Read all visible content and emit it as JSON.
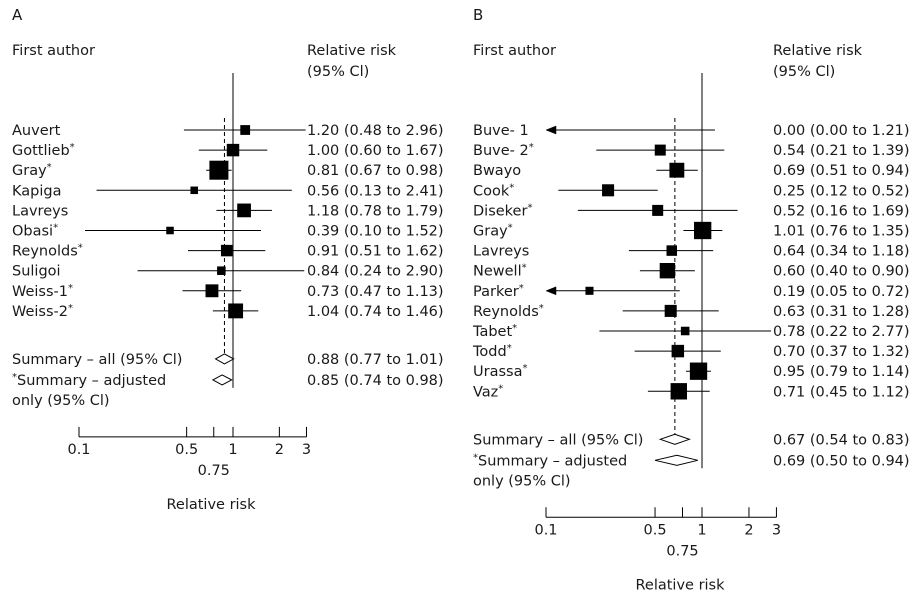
{
  "chart_data": [
    {
      "type": "forest",
      "panel": "A",
      "column_author": "First author",
      "column_rr_line1": "Relative risk",
      "column_rr_line2": "(95% Cl)",
      "xlabel": "Relative risk",
      "x_scale": "log",
      "xlim": [
        0.1,
        3
      ],
      "xticks": [
        0.1,
        0.5,
        0.75,
        1,
        2,
        3
      ],
      "xtick_labels": [
        "0.1",
        "0.5",
        "0.75",
        "1",
        "2",
        "3"
      ],
      "reference_line": 1,
      "summary_line": 0.88,
      "studies": [
        {
          "author": "Auvert",
          "adjusted": false,
          "rr": 1.2,
          "lo": 0.48,
          "hi": 2.96,
          "label": "1.20 (0.48 to 2.96)",
          "weight": 0.18
        },
        {
          "author": "Gottlieb",
          "adjusted": true,
          "rr": 1.0,
          "lo": 0.6,
          "hi": 1.67,
          "label": "1.00 (0.60 to 1.67)",
          "weight": 0.35
        },
        {
          "author": "Gray",
          "adjusted": true,
          "rr": 0.81,
          "lo": 0.67,
          "hi": 0.98,
          "label": "0.81 (0.67 to 0.98)",
          "weight": 1.0
        },
        {
          "author": "Kapiga",
          "adjusted": false,
          "rr": 0.56,
          "lo": 0.13,
          "hi": 2.41,
          "label": "0.56 (0.13 to 2.41)",
          "weight": 0.08
        },
        {
          "author": "Lavreys",
          "adjusted": false,
          "rr": 1.18,
          "lo": 0.78,
          "hi": 1.79,
          "label": "1.18 (0.78 to 1.79)",
          "weight": 0.45
        },
        {
          "author": "Obasi",
          "adjusted": true,
          "rr": 0.39,
          "lo": 0.1,
          "hi": 1.52,
          "label": "0.39 (0.10 to 1.52)",
          "weight": 0.08
        },
        {
          "author": "Reynolds",
          "adjusted": true,
          "rr": 0.91,
          "lo": 0.51,
          "hi": 1.62,
          "label": "0.91 (0.51 to 1.62)",
          "weight": 0.28
        },
        {
          "author": "Suligoi",
          "adjusted": false,
          "rr": 0.84,
          "lo": 0.24,
          "hi": 2.9,
          "label": "0.84 (0.24 to 2.90)",
          "weight": 0.12
        },
        {
          "author": "Weiss-1",
          "adjusted": true,
          "rr": 0.73,
          "lo": 0.47,
          "hi": 1.13,
          "label": "0.73 (0.47 to 1.13)",
          "weight": 0.38
        },
        {
          "author": "Weiss-2",
          "adjusted": true,
          "rr": 1.04,
          "lo": 0.74,
          "hi": 1.46,
          "label": "1.04 (0.74 to 1.46)",
          "weight": 0.55
        }
      ],
      "summaries": [
        {
          "lines": [
            "Summary – all (95% Cl)"
          ],
          "adjusted_marker": false,
          "rr": 0.88,
          "lo": 0.77,
          "hi": 1.01,
          "label": "0.88 (0.77 to 1.01)"
        },
        {
          "lines": [
            "Summary – adjusted",
            "only (95% Cl)"
          ],
          "adjusted_marker": true,
          "rr": 0.85,
          "lo": 0.74,
          "hi": 0.98,
          "label": "0.85 (0.74 to 0.98)"
        }
      ]
    },
    {
      "type": "forest",
      "panel": "B",
      "column_author": "First author",
      "column_rr_line1": "Relative risk",
      "column_rr_line2": "(95% Cl)",
      "xlabel": "Relative risk",
      "x_scale": "log",
      "xlim": [
        0.1,
        3
      ],
      "xticks": [
        0.1,
        0.5,
        0.75,
        1,
        2,
        3
      ],
      "xtick_labels": [
        "0.1",
        "0.5",
        "0.75",
        "1",
        "2",
        "3"
      ],
      "reference_line": 1,
      "summary_line": 0.67,
      "studies": [
        {
          "author": "Buve- 1",
          "adjusted": false,
          "rr": 0.0,
          "lo": 0.0,
          "hi": 1.21,
          "label": "0.00 (0.00 to 1.21)",
          "weight": 0.0,
          "arrow_left": true
        },
        {
          "author": "Buve- 2",
          "adjusted": true,
          "rr": 0.54,
          "lo": 0.21,
          "hi": 1.39,
          "label": "0.54 (0.21 to 1.39)",
          "weight": 0.25
        },
        {
          "author": "Bwayo",
          "adjusted": false,
          "rr": 0.69,
          "lo": 0.51,
          "hi": 0.94,
          "label": "0.69 (0.51 to 0.94)",
          "weight": 0.55
        },
        {
          "author": "Cook",
          "adjusted": true,
          "rr": 0.25,
          "lo": 0.12,
          "hi": 0.52,
          "label": "0.25 (0.12 to 0.52)",
          "weight": 0.32
        },
        {
          "author": "Diseker",
          "adjusted": true,
          "rr": 0.52,
          "lo": 0.16,
          "hi": 1.69,
          "label": "0.52 (0.16 to 1.69)",
          "weight": 0.25
        },
        {
          "author": "Gray",
          "adjusted": true,
          "rr": 1.01,
          "lo": 0.76,
          "hi": 1.35,
          "label": "1.01 (0.76 to 1.35)",
          "weight": 0.8
        },
        {
          "author": "Lavreys",
          "adjusted": false,
          "rr": 0.64,
          "lo": 0.34,
          "hi": 1.18,
          "label": "0.64 (0.34 to 1.18)",
          "weight": 0.22
        },
        {
          "author": "Newell",
          "adjusted": true,
          "rr": 0.6,
          "lo": 0.4,
          "hi": 0.9,
          "label": "0.60 (0.40 to 0.90)",
          "weight": 0.6
        },
        {
          "author": "Parker",
          "adjusted": true,
          "rr": 0.19,
          "lo": 0.05,
          "hi": 0.72,
          "label": "0.19 (0.05 to 0.72)",
          "weight": 0.1,
          "arrow_left": true
        },
        {
          "author": "Reynolds",
          "adjusted": true,
          "rr": 0.63,
          "lo": 0.31,
          "hi": 1.28,
          "label": "0.63 (0.31 to 1.28)",
          "weight": 0.32
        },
        {
          "author": "Tabet",
          "adjusted": true,
          "rr": 0.78,
          "lo": 0.22,
          "hi": 2.77,
          "label": "0.78 (0.22 to 2.77)",
          "weight": 0.12
        },
        {
          "author": "Todd",
          "adjusted": true,
          "rr": 0.7,
          "lo": 0.37,
          "hi": 1.32,
          "label": "0.70 (0.37 to 1.32)",
          "weight": 0.35
        },
        {
          "author": "Urassa",
          "adjusted": true,
          "rr": 0.95,
          "lo": 0.79,
          "hi": 1.14,
          "label": "0.95 (0.79 to 1.14)",
          "weight": 0.8
        },
        {
          "author": "Vaz",
          "adjusted": true,
          "rr": 0.71,
          "lo": 0.45,
          "hi": 1.12,
          "label": "0.71 (0.45 to 1.12)",
          "weight": 0.7
        }
      ],
      "summaries": [
        {
          "lines": [
            "Summary – all (95% Cl)"
          ],
          "adjusted_marker": false,
          "rr": 0.67,
          "lo": 0.54,
          "hi": 0.83,
          "label": "0.67 (0.54 to 0.83)"
        },
        {
          "lines": [
            "Summary – adjusted",
            "only (95% Cl)"
          ],
          "adjusted_marker": true,
          "rr": 0.69,
          "lo": 0.5,
          "hi": 0.94,
          "label": "0.69 (0.50 to 0.94)"
        }
      ]
    }
  ]
}
